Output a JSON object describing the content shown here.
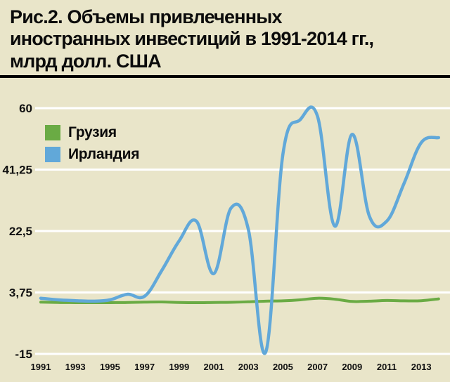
{
  "header": {
    "title_lines": [
      "Рис.2. Объемы привлеченных",
      "иностранных инвестиций в 1991-2014 гг.,",
      "млрд долл. США"
    ]
  },
  "chart_data": {
    "type": "line",
    "title": "Рис.2. Объемы привлеченных иностранных инвестиций в 1991-2014 гг., млрд долл. США",
    "xlabel": "",
    "ylabel": "",
    "background_color": "#e9e5c9",
    "gridline_color": "#ffffff",
    "grid": true,
    "legend_position": "top-left",
    "xlim": [
      1991,
      2014.5
    ],
    "ylim": [
      -15,
      60
    ],
    "x": [
      1991,
      1992,
      1993,
      1994,
      1995,
      1996,
      1997,
      1998,
      1999,
      2000,
      2001,
      2002,
      2003,
      2004,
      2005,
      2006,
      2007,
      2008,
      2009,
      2010,
      2011,
      2012,
      2013,
      2014
    ],
    "series": [
      {
        "id": "georgia",
        "name": "Грузия",
        "color": "#6aab44",
        "values": [
          0.8,
          0.7,
          0.65,
          0.65,
          0.65,
          0.7,
          0.8,
          0.85,
          0.7,
          0.65,
          0.7,
          0.75,
          0.9,
          1.1,
          1.2,
          1.5,
          2.0,
          1.7,
          1.0,
          1.1,
          1.3,
          1.2,
          1.25,
          1.8
        ]
      },
      {
        "id": "ireland",
        "name": "Ирландия",
        "color": "#61a8d9",
        "values": [
          2.0,
          1.5,
          1.25,
          1.1,
          1.5,
          3.2,
          2.6,
          10.5,
          19.5,
          25.5,
          9.5,
          29.5,
          23.0,
          -14.5,
          46.0,
          56.5,
          57.5,
          24.0,
          52.0,
          27.0,
          25.5,
          37.0,
          49.5,
          51.0
        ]
      }
    ],
    "yticks": {
      "values": [
        60,
        41.25,
        22.5,
        3.75,
        -15
      ],
      "labels": [
        "60",
        "41,25",
        "22,5",
        "3,75",
        "-15"
      ]
    },
    "xticks": {
      "values": [
        1991,
        1993,
        1995,
        1997,
        1999,
        2001,
        2003,
        2005,
        2007,
        2009,
        2011,
        2013
      ],
      "labels": [
        "1991",
        "1993",
        "1995",
        "1997",
        "1999",
        "2001",
        "2003",
        "2005",
        "2007",
        "2009",
        "2011",
        "2013"
      ]
    }
  }
}
